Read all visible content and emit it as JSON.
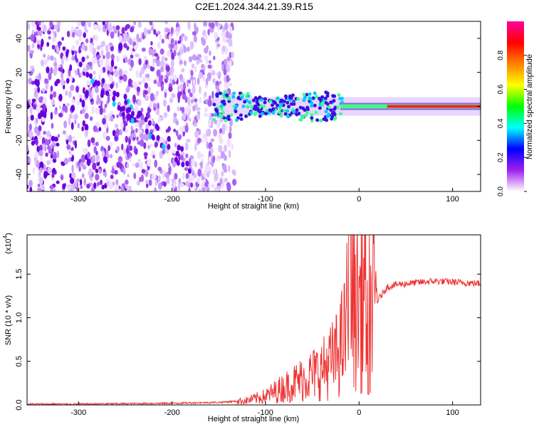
{
  "figure_title": "C2E1.2024.344.21.39.R15",
  "chart_data": [
    {
      "type": "heatmap",
      "title": "C2E1.2024.344.21.39.R15",
      "xlabel": "Height of straight line (km)",
      "ylabel": "Frequency (Hz)",
      "xlim": [
        -355,
        130
      ],
      "ylim": [
        -50,
        50
      ],
      "x_ticks": [
        -300,
        -200,
        -100,
        0,
        100
      ],
      "x_tick_labels": [
        "-300",
        "-200",
        "-100",
        "0",
        "100"
      ],
      "y_ticks": [
        -40,
        -20,
        0,
        20,
        40
      ],
      "y_tick_labels": [
        "-40",
        "-20",
        "0",
        "20",
        "40"
      ],
      "colorbar": {
        "label": "Normalized spectral amplitude",
        "range": [
          0.0,
          1.0
        ],
        "ticks": [
          0.0,
          0.2,
          0.4,
          0.6,
          0.8
        ],
        "tick_labels": [
          "0.0",
          "0.2",
          "0.4",
          "0.6",
          "0.8"
        ],
        "colors": [
          "#ffffff",
          "#a020f0",
          "#0000ff",
          "#00ffff",
          "#00ff00",
          "#ffff00",
          "#ff8000",
          "#ff0000",
          "#ff00a0"
        ]
      },
      "features": {
        "noise_region_x": [
          -355,
          -135
        ],
        "signal_line_frequency": 0,
        "signal_start_x": -155
      },
      "grid": false
    },
    {
      "type": "line",
      "xlabel": "Height of straight line (km)",
      "ylabel": "SNR (10 * v/v)",
      "scale_label": "(x10",
      "scale_exp": "4",
      "scale_close": ")",
      "xlim": [
        -355,
        130
      ],
      "ylim": [
        0,
        1.95
      ],
      "x_ticks": [
        -300,
        -200,
        -100,
        0,
        100
      ],
      "x_tick_labels": [
        "-300",
        "-200",
        "-100",
        "0",
        "100"
      ],
      "y_ticks": [
        0.0,
        0.5,
        1.0,
        1.5
      ],
      "y_tick_labels": [
        "0.0",
        "0.5",
        "1.0",
        "1.5"
      ],
      "line_color": "#ee3333",
      "series": [
        {
          "x": [
            -355,
            -300,
            -200,
            -150,
            -120,
            -100,
            -80,
            -60,
            -40,
            -25,
            -15,
            -10,
            -5,
            0,
            5,
            10,
            20,
            30,
            40,
            60,
            80,
            100,
            130
          ],
          "y": [
            0.01,
            0.01,
            0.02,
            0.03,
            0.05,
            0.1,
            0.2,
            0.3,
            0.4,
            0.55,
            0.8,
            1.4,
            1.2,
            1.2,
            1.3,
            1.1,
            1.2,
            1.35,
            1.38,
            1.4,
            1.42,
            1.41,
            1.39
          ]
        }
      ],
      "grid": false
    }
  ]
}
